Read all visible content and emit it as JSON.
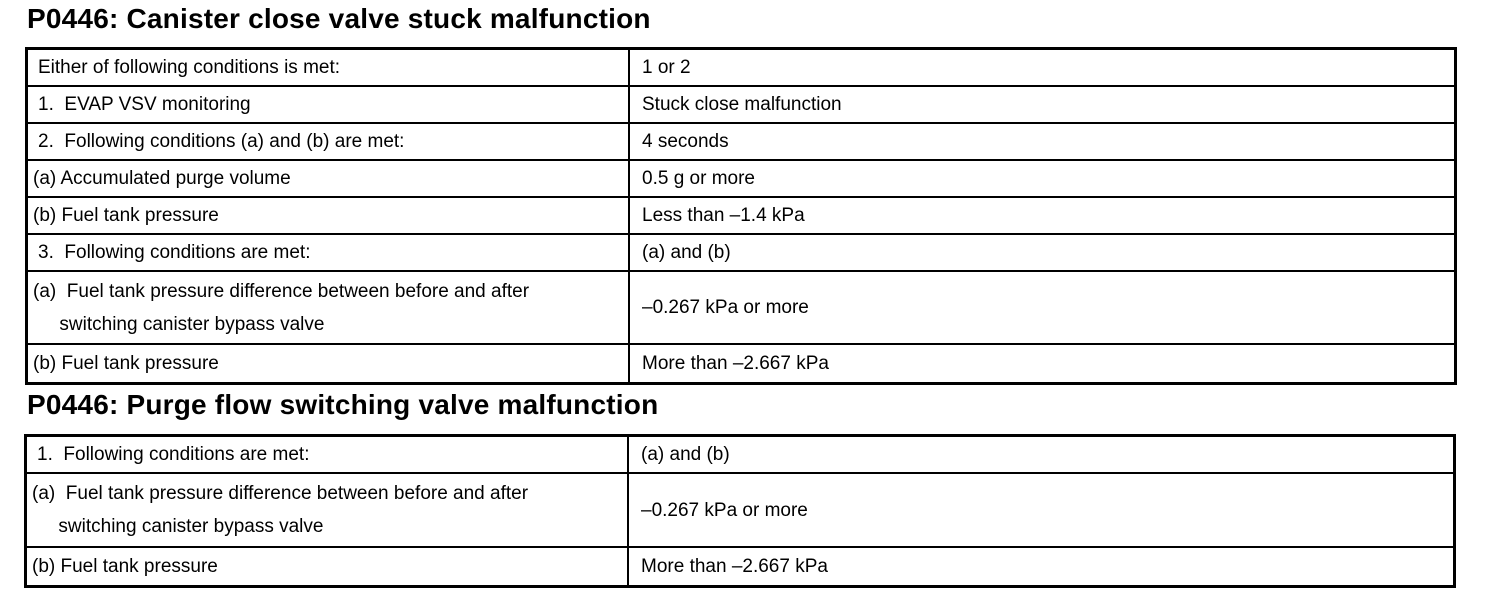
{
  "section1": {
    "title": "P0446: Canister close valve stuck malfunction",
    "rows": [
      {
        "condition": "Either of following conditions is met:",
        "value": "1 or 2"
      },
      {
        "condition": "1.  EVAP VSV monitoring",
        "value": "Stuck close malfunction"
      },
      {
        "condition": "2.  Following conditions (a) and (b) are met:",
        "value": "4 seconds"
      },
      {
        "condition": "(a) Accumulated purge volume",
        "value": "0.5 g or more"
      },
      {
        "condition": "(b) Fuel tank pressure",
        "value": "Less than –1.4 kPa"
      },
      {
        "condition": "3.  Following conditions are met:",
        "value": "(a) and (b)"
      },
      {
        "condition": "(a)  Fuel tank pressure difference between before and after\n     switching canister bypass valve",
        "value": "–0.267 kPa or more"
      },
      {
        "condition": "(b) Fuel tank pressure",
        "value": "More than –2.667 kPa"
      }
    ]
  },
  "section2": {
    "title": "P0446: Purge flow switching valve malfunction",
    "rows": [
      {
        "condition": "1.  Following conditions are met:",
        "value": "(a) and (b)"
      },
      {
        "condition": "(a)  Fuel tank pressure difference between before and after\n     switching canister bypass valve",
        "value": "–0.267 kPa or more"
      },
      {
        "condition": "(b) Fuel tank pressure",
        "value": "More than –2.667 kPa"
      }
    ]
  }
}
